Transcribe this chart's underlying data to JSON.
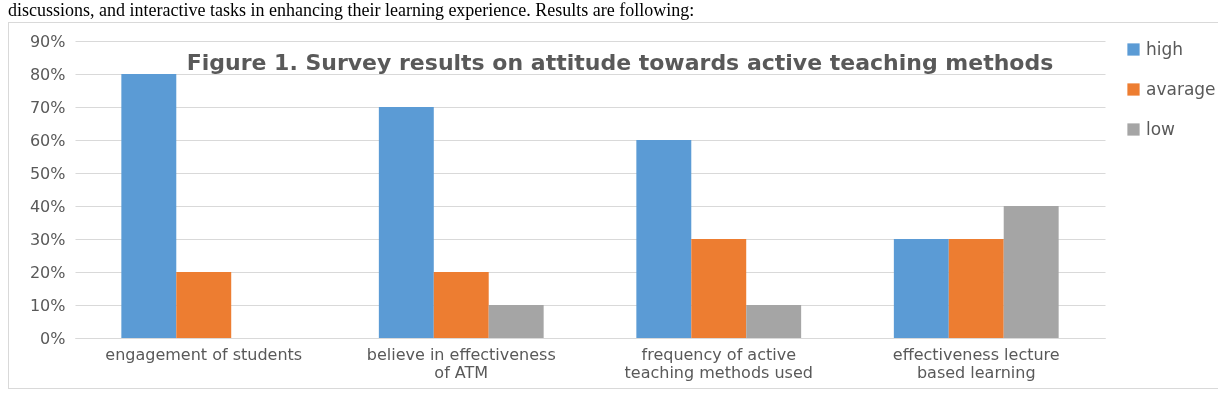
{
  "chart_data": {
    "type": "bar",
    "title": "Figure 1. Survey results on attitude towards active teaching methods",
    "annotations": [
      "discussions, and interactive tasks in enhancing their learning experience. Results are following:"
    ],
    "categories": [
      "engagement of students",
      "believe in effectiveness of ATM",
      "frequency of active teaching methods used",
      "effectiveness lecture based learning"
    ],
    "series": [
      {
        "name": "high",
        "color": "#5b9bd5",
        "values": [
          80,
          70,
          60,
          30
        ]
      },
      {
        "name": "avarage",
        "color": "#ed7d31",
        "values": [
          20,
          20,
          30,
          30
        ]
      },
      {
        "name": "low",
        "color": "#a5a5a5",
        "values": [
          0,
          10,
          10,
          40
        ]
      }
    ],
    "ylim": [
      0,
      90
    ],
    "yticks": [
      {
        "value": 0,
        "label": "0%"
      },
      {
        "value": 10,
        "label": "10%"
      },
      {
        "value": 20,
        "label": "20%"
      },
      {
        "value": 30,
        "label": "30%"
      },
      {
        "value": 40,
        "label": "40%"
      },
      {
        "value": 50,
        "label": "50%"
      },
      {
        "value": 60,
        "label": "60%"
      },
      {
        "value": 70,
        "label": "70%"
      },
      {
        "value": 80,
        "label": "80%"
      },
      {
        "value": 90,
        "label": "90%"
      }
    ],
    "grid": "y",
    "legend": "right"
  }
}
